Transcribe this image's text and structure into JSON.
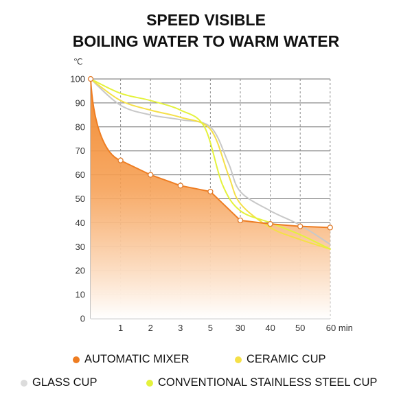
{
  "title": [
    "SPEED VISIBLE",
    "BOILING WATER TO WARM WATER"
  ],
  "chart_data": {
    "type": "line",
    "title": "SPEED VISIBLE BOILING WATER TO WARM WATER",
    "ylabel": "℃",
    "xlabel": "min",
    "categories": [
      "0",
      "1",
      "2",
      "3",
      "5",
      "30",
      "40",
      "50",
      "60"
    ],
    "x_tick_labels": [
      "1",
      "2",
      "3",
      "5",
      "30",
      "40",
      "50",
      "60 min"
    ],
    "y_ticks": [
      0,
      10,
      20,
      30,
      40,
      50,
      60,
      70,
      80,
      90,
      100
    ],
    "ylim": [
      0,
      100
    ],
    "grid": true,
    "series": [
      {
        "name": "AUTOMATIC MIXER",
        "color": "#ee7d22",
        "style": "filled-area-with-markers",
        "points": [
          [
            0,
            100
          ],
          [
            1,
            66
          ],
          [
            2,
            60
          ],
          [
            3,
            55.5
          ],
          [
            4,
            53
          ],
          [
            5,
            41
          ],
          [
            6,
            39.5
          ],
          [
            7,
            38.5
          ],
          [
            8,
            38
          ]
        ]
      },
      {
        "name": "CERAMIC CUP",
        "color": "#f5e048",
        "style": "smooth-line",
        "points": [
          [
            0,
            100
          ],
          [
            1,
            91
          ],
          [
            2,
            87
          ],
          [
            3,
            84
          ],
          [
            4,
            79
          ],
          [
            4.6,
            60
          ],
          [
            5,
            48
          ],
          [
            6,
            38
          ],
          [
            7,
            33
          ],
          [
            8,
            29
          ]
        ]
      },
      {
        "name": "GLASS CUP",
        "color": "#c8c8c8",
        "style": "smooth-line",
        "points": [
          [
            0,
            100
          ],
          [
            1,
            89
          ],
          [
            2,
            85
          ],
          [
            3,
            83
          ],
          [
            4,
            80
          ],
          [
            4.6,
            65
          ],
          [
            5,
            53
          ],
          [
            6,
            45
          ],
          [
            7,
            39
          ],
          [
            8,
            31
          ]
        ]
      },
      {
        "name": "CONVENTIONAL STAINLESS STEEL CUP",
        "color": "#e4f23c",
        "style": "smooth-line",
        "points": [
          [
            0,
            100
          ],
          [
            1,
            94
          ],
          [
            2,
            91
          ],
          [
            3,
            87
          ],
          [
            3.8,
            80
          ],
          [
            4.4,
            56
          ],
          [
            5,
            45
          ],
          [
            6,
            40
          ],
          [
            7,
            35
          ],
          [
            8,
            29
          ]
        ]
      }
    ]
  },
  "legend": [
    {
      "label": "AUTOMATIC MIXER",
      "color": "#ee7d22"
    },
    {
      "label": "CERAMIC CUP",
      "color": "#f5e048"
    },
    {
      "label": "GLASS CUP",
      "color": "#dcdcdc"
    },
    {
      "label": "CONVENTIONAL STAINLESS STEEL CUP",
      "color": "#e4f23c"
    }
  ]
}
